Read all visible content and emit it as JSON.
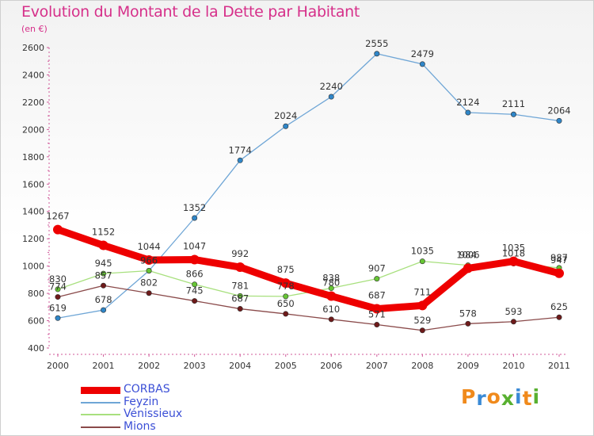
{
  "title": "Evolution du Montant de la Dette par Habitant",
  "subtitle": "(en €)",
  "logo": {
    "text": "Proxiti",
    "letter_colors": [
      "#f08a1c",
      "#3a8ad6",
      "#f08a1c",
      "#58b030",
      "#3a8ad6",
      "#f08a1c",
      "#58b030"
    ]
  },
  "chart_data": {
    "type": "line",
    "title": "Evolution du Montant de la Dette par Habitant",
    "subtitle": "(en €)",
    "xlabel": "",
    "ylabel": "",
    "x": [
      "2000",
      "2001",
      "2002",
      "2003",
      "2004",
      "2005",
      "2006",
      "2007",
      "2008",
      "2009",
      "2010",
      "2011"
    ],
    "ylim": [
      400,
      2600
    ],
    "yticks": [
      400,
      600,
      800,
      1000,
      1200,
      1400,
      1600,
      1800,
      2000,
      2200,
      2400,
      2600
    ],
    "grid": false,
    "legend": "bottom-left",
    "series": [
      {
        "name": "Feyzin",
        "color": "#6fa6d6",
        "marker_color": "#2f86c8",
        "values": [
          619,
          678,
          966,
          1352,
          1774,
          2024,
          2240,
          2555,
          2479,
          2124,
          2111,
          2064
        ],
        "labels": [
          "619",
          "678",
          "966",
          "1352",
          "1774",
          "2024",
          "2240",
          "2555",
          "2479",
          "2124",
          "2111",
          "2064"
        ]
      },
      {
        "name": "Vénissieux",
        "color": "#a8e07e",
        "marker_color": "#66c534",
        "values": [
          830,
          945,
          966,
          866,
          781,
          778,
          838,
          907,
          1035,
          1006,
          1018,
          987
        ],
        "labels": [
          "830",
          "945",
          "966",
          "866",
          "781",
          "778",
          "838",
          "907",
          "1035",
          "1006",
          "1018",
          "987"
        ]
      },
      {
        "name": "Mions",
        "color": "#8a4a4a",
        "marker_color": "#6e1a1a",
        "values": [
          774,
          857,
          802,
          745,
          687,
          650,
          610,
          571,
          529,
          578,
          593,
          625
        ],
        "labels": [
          "774",
          "857",
          "802",
          "745",
          "687",
          "650",
          "610",
          "571",
          "529",
          "578",
          "593",
          "625"
        ]
      },
      {
        "name": "CORBAS",
        "color": "#ee0000",
        "marker_color": "#ee0000",
        "values": [
          1267,
          1152,
          1044,
          1047,
          992,
          875,
          780,
          687,
          711,
          984,
          1035,
          947
        ],
        "labels": [
          "1267",
          "1152",
          "1044",
          "1047",
          "992",
          "875",
          "780",
          "687",
          "711",
          "984",
          "1035",
          "947"
        ]
      }
    ],
    "legend_order": [
      "CORBAS",
      "Feyzin",
      "Vénissieux",
      "Mions"
    ]
  }
}
